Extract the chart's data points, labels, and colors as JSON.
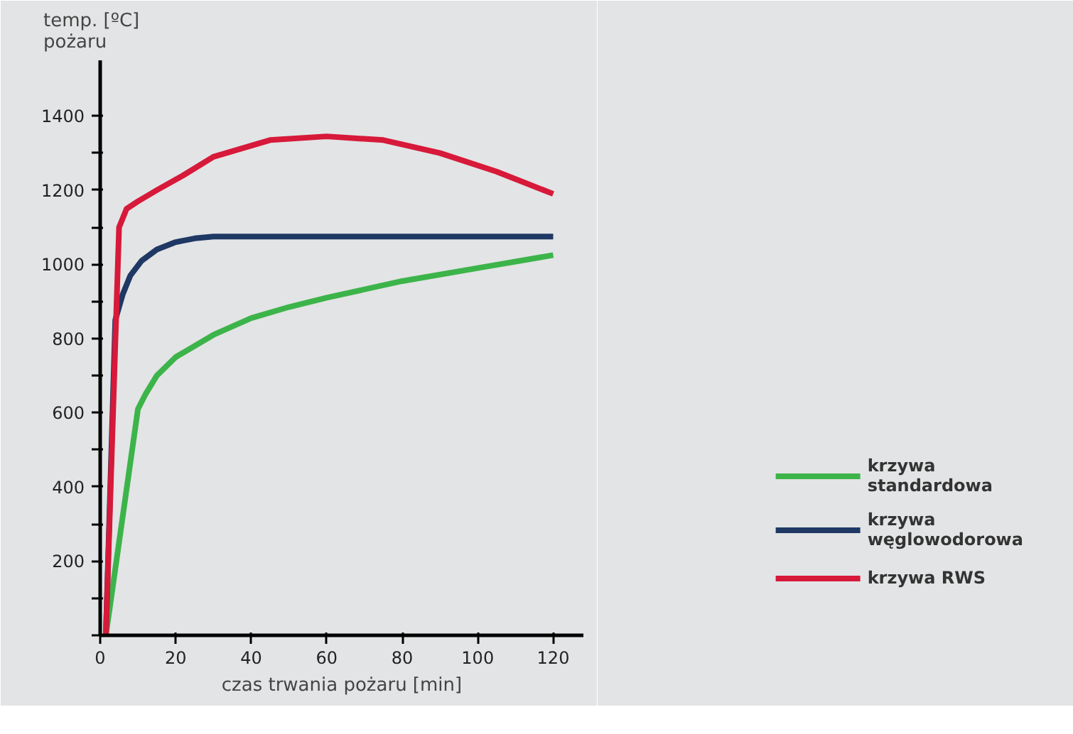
{
  "chart_data": {
    "type": "line",
    "ylabel": "temp. [ºC] pożaru",
    "xlabel": "czas trwania pożaru [min]",
    "xlim": [
      0,
      128
    ],
    "xticks": [
      0,
      20,
      40,
      60,
      80,
      100,
      120
    ],
    "ylim": [
      0,
      1550
    ],
    "yticks": [
      {
        "value": 0,
        "label": null
      },
      {
        "value": 100,
        "label": null
      },
      200,
      {
        "value": 300,
        "label": null
      },
      400,
      {
        "value": 500,
        "label": null
      },
      600,
      {
        "value": 700,
        "label": null
      },
      800,
      {
        "value": 900,
        "label": null
      },
      1000,
      {
        "value": 1100,
        "label": null
      },
      1200,
      {
        "value": 1300,
        "label": null
      },
      1400
    ],
    "grid": false,
    "legend": "bottom right",
    "marker": "none",
    "line_style": "solid",
    "series": [
      {
        "name": "krzywa standardowa",
        "color": "#3cb44a",
        "x": [
          1.5,
          10,
          12,
          15,
          20,
          30,
          40,
          50,
          60,
          80,
          100,
          120
        ],
        "values": [
          0,
          610,
          650,
          700,
          750,
          810,
          855,
          885,
          910,
          955,
          990,
          1025
        ]
      },
      {
        "name": "krzywa węglowodorowa",
        "color": "#1f3864",
        "x": [
          1.5,
          4,
          6,
          8,
          11,
          15,
          20,
          25,
          30,
          60,
          90,
          120
        ],
        "values": [
          0,
          850,
          920,
          970,
          1010,
          1040,
          1060,
          1070,
          1075,
          1075,
          1075,
          1075
        ]
      },
      {
        "name": "krzywa RWS",
        "color": "#d7193a",
        "x": [
          1.5,
          5,
          7,
          10,
          15,
          22,
          30,
          45,
          60,
          75,
          90,
          105,
          120
        ],
        "values": [
          0,
          1100,
          1150,
          1170,
          1200,
          1240,
          1290,
          1335,
          1345,
          1335,
          1300,
          1250,
          1190
        ]
      }
    ]
  }
}
